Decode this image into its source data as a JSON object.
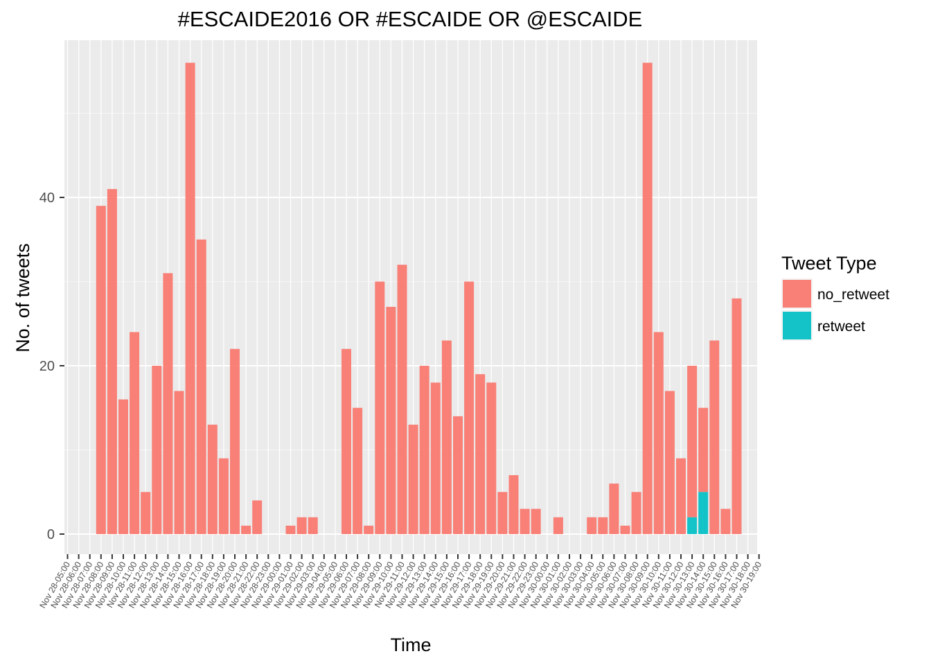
{
  "chart_data": {
    "type": "bar",
    "stacked": true,
    "title": "#ESCAIDE2016 OR #ESCAIDE OR @ESCAIDE",
    "xlabel": "Time",
    "ylabel": "No. of tweets",
    "ylim": [
      -3,
      59
    ],
    "yticks": [
      0,
      20,
      40
    ],
    "grid": true,
    "legend_position": "right",
    "legend_title": "Tweet Type",
    "categories": [
      "Nov 28-05:00",
      "Nov 28-06:00",
      "Nov 28-07:00",
      "Nov 28-08:00",
      "Nov 28-09:00",
      "Nov 28-10:00",
      "Nov 28-11:00",
      "Nov 28-12:00",
      "Nov 28-13:00",
      "Nov 28-14:00",
      "Nov 28-15:00",
      "Nov 28-16:00",
      "Nov 28-17:00",
      "Nov 28-18:00",
      "Nov 28-19:00",
      "Nov 28-20:00",
      "Nov 28-21:00",
      "Nov 28-22:00",
      "Nov 28-23:00",
      "Nov 29-00:00",
      "Nov 29-01:00",
      "Nov 29-02:00",
      "Nov 29-03:00",
      "Nov 29-04:00",
      "Nov 29-05:00",
      "Nov 29-06:00",
      "Nov 29-07:00",
      "Nov 29-08:00",
      "Nov 29-09:00",
      "Nov 29-10:00",
      "Nov 29-11:00",
      "Nov 29-12:00",
      "Nov 29-13:00",
      "Nov 29-14:00",
      "Nov 29-15:00",
      "Nov 29-16:00",
      "Nov 29-17:00",
      "Nov 29-18:00",
      "Nov 29-19:00",
      "Nov 29-20:00",
      "Nov 29-21:00",
      "Nov 29-22:00",
      "Nov 29-23:00",
      "Nov 30-00:00",
      "Nov 30-01:00",
      "Nov 30-02:00",
      "Nov 30-03:00",
      "Nov 30-04:00",
      "Nov 30-05:00",
      "Nov 30-06:00",
      "Nov 30-07:00",
      "Nov 30-08:00",
      "Nov 30-09:00",
      "Nov 30-10:00",
      "Nov 30-11:00",
      "Nov 30-12:00",
      "Nov 30-13:00",
      "Nov 30-14:00",
      "Nov 30-15:00",
      "Nov 30-16:00",
      "Nov 30-17:00",
      "Nov 30-18:00",
      "Nov 30-19:00"
    ],
    "series": [
      {
        "name": "no_retweet",
        "color": "#F8766D",
        "values": [
          0,
          0,
          0,
          39,
          41,
          16,
          24,
          5,
          20,
          31,
          17,
          56,
          35,
          13,
          9,
          22,
          1,
          4,
          0,
          0,
          1,
          2,
          2,
          0,
          0,
          22,
          15,
          1,
          30,
          27,
          32,
          13,
          20,
          18,
          23,
          14,
          30,
          19,
          18,
          5,
          7,
          3,
          3,
          0,
          2,
          0,
          0,
          2,
          2,
          6,
          1,
          5,
          56,
          24,
          17,
          9,
          18,
          10,
          23,
          3,
          28,
          0,
          0
        ]
      },
      {
        "name": "retweet",
        "color": "#00BFC4",
        "values": [
          0,
          0,
          0,
          0,
          0,
          0,
          0,
          0,
          0,
          0,
          0,
          0,
          0,
          0,
          0,
          0,
          0,
          0,
          0,
          0,
          0,
          0,
          0,
          0,
          0,
          0,
          0,
          0,
          0,
          0,
          0,
          0,
          0,
          0,
          0,
          0,
          0,
          0,
          0,
          0,
          0,
          0,
          0,
          0,
          0,
          0,
          0,
          0,
          0,
          0,
          0,
          0,
          0,
          0,
          0,
          0,
          2,
          5,
          0,
          0,
          0,
          0,
          0
        ]
      }
    ]
  }
}
